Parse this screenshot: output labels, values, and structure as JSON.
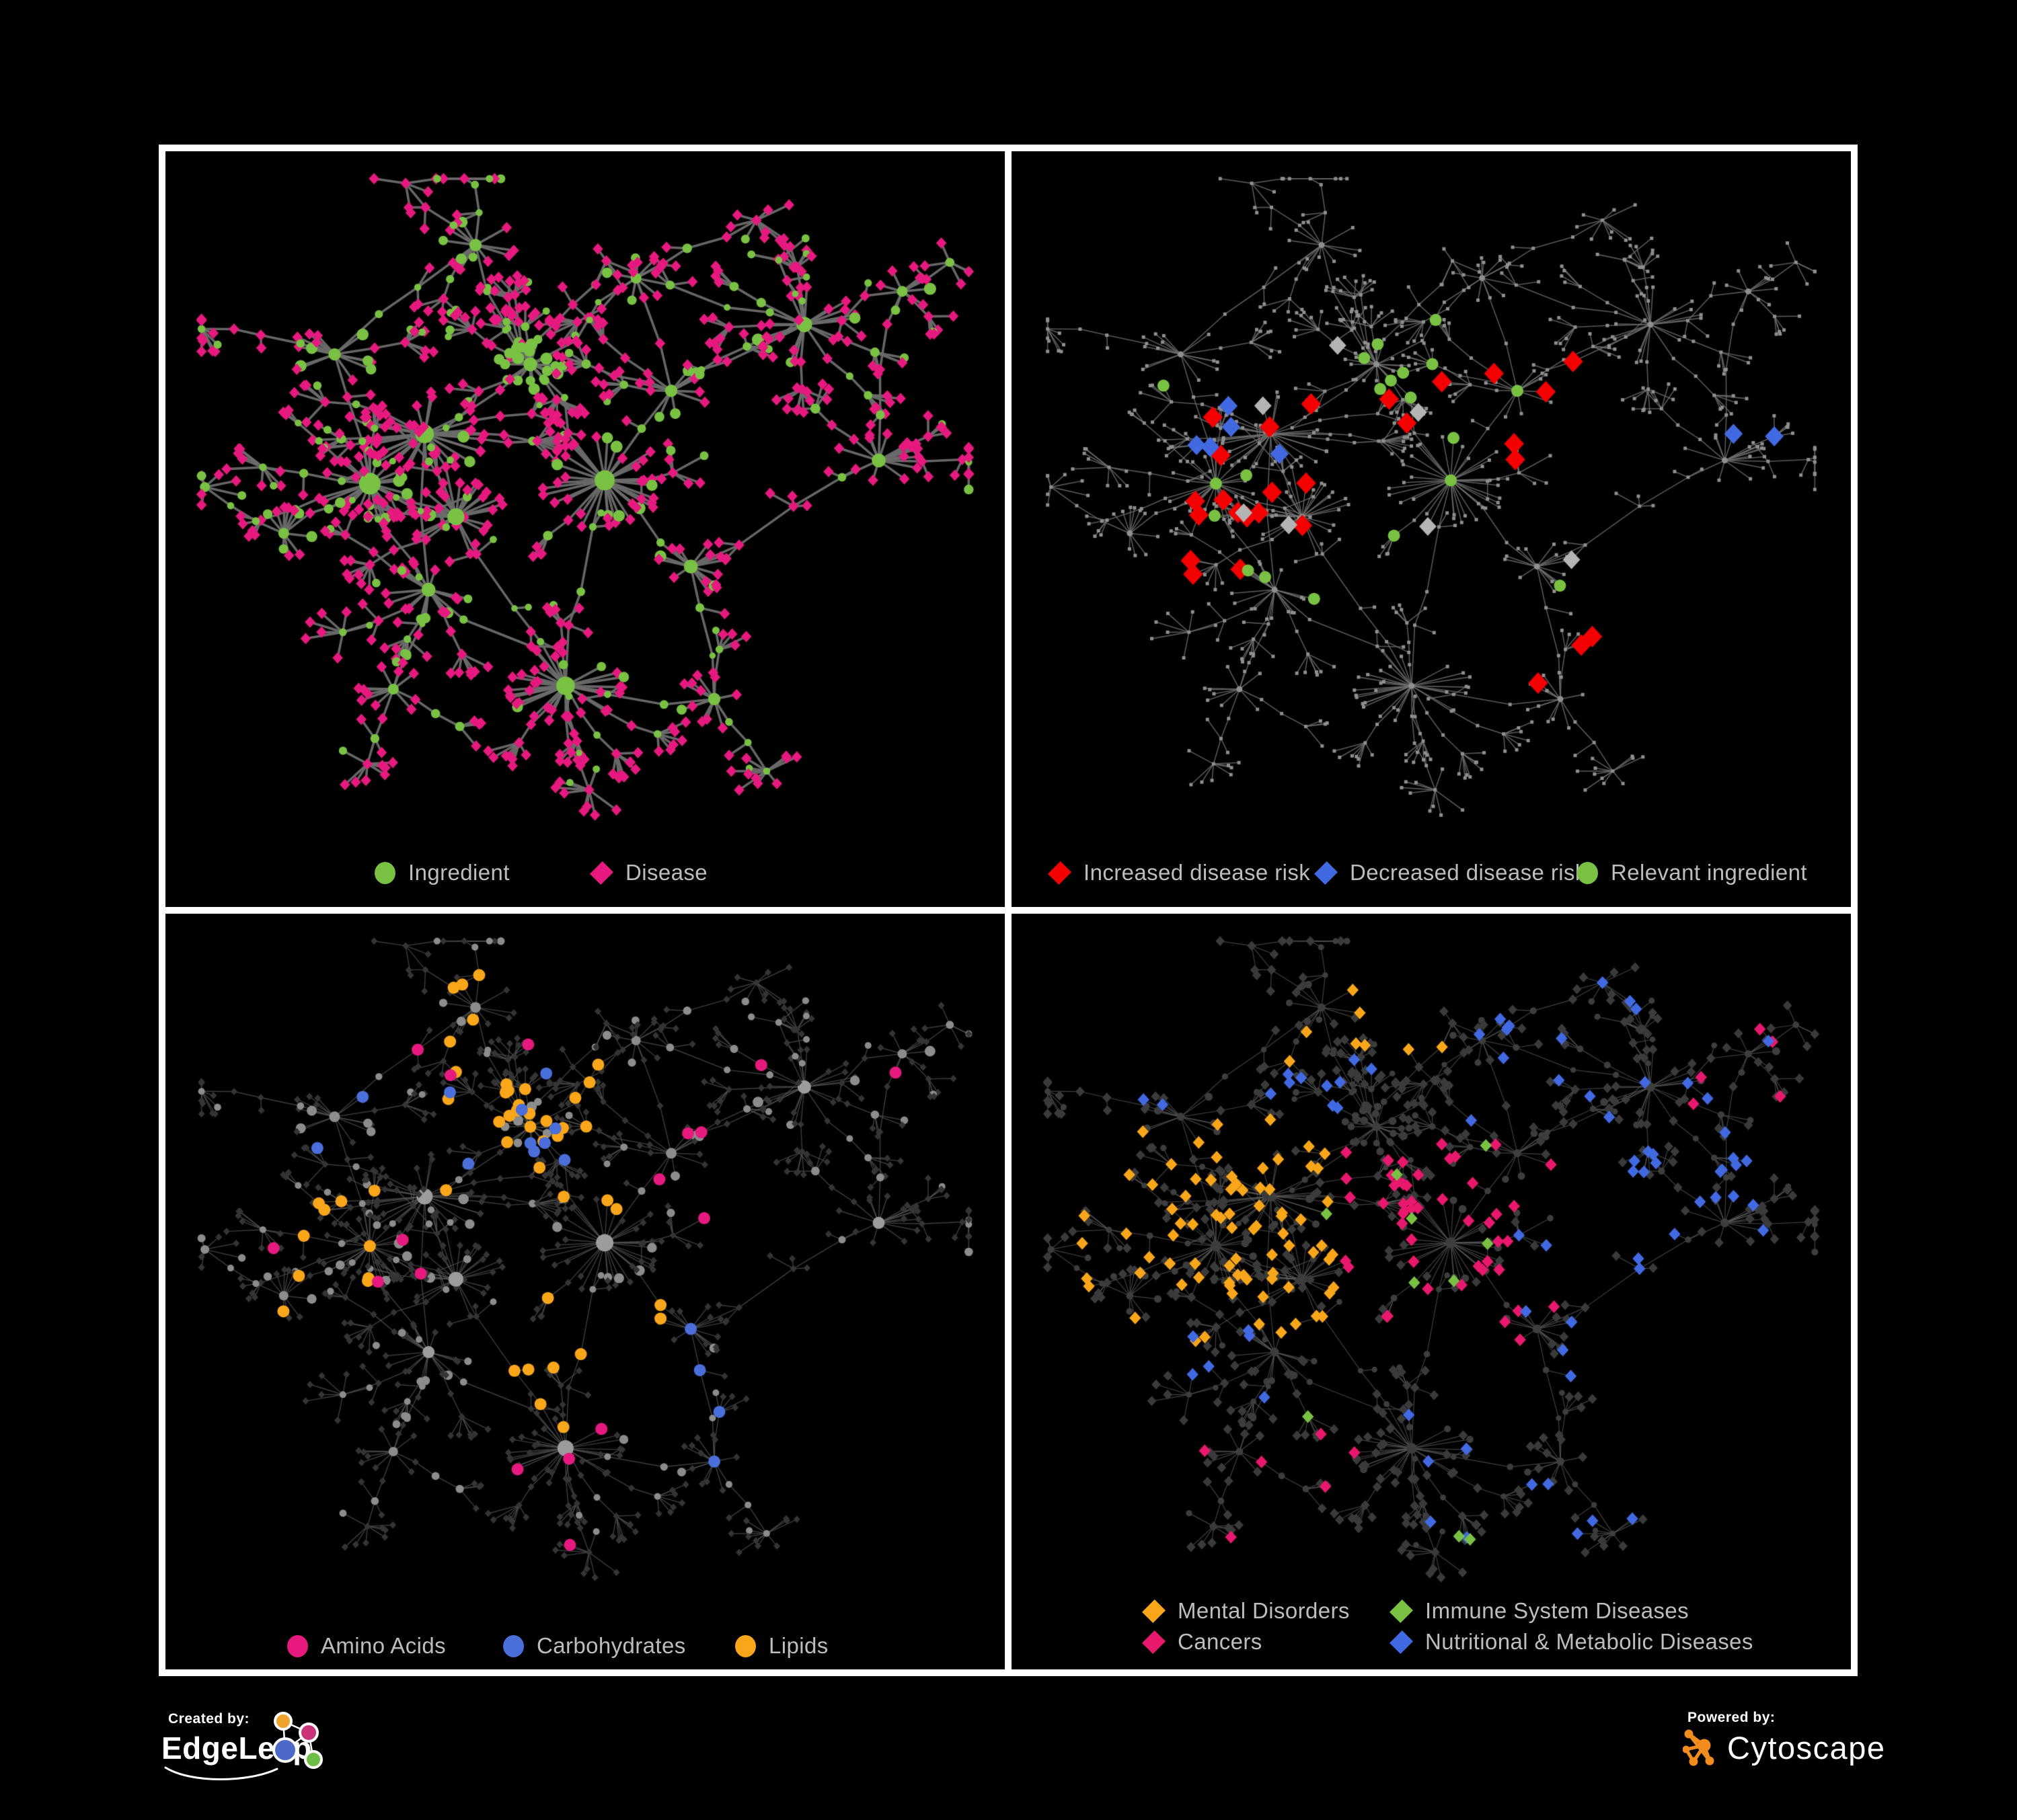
{
  "branding": {
    "created_by_label": "Created by:",
    "created_by_name": "EdgeLeap",
    "powered_by_label": "Powered by:",
    "powered_by_name": "Cytoscape",
    "edgeleap_logo_colors": [
      "#F0A32A",
      "#C9347B",
      "#4A69C8",
      "#6CBE45"
    ],
    "cytoscape_orange": "#F28C1E"
  },
  "panels": [
    {
      "key": "ingredient-disease",
      "legend": [
        {
          "label": "Ingredient",
          "shape": "circle",
          "color": "#79C143"
        },
        {
          "label": "Disease",
          "shape": "diamond",
          "color": "#E6197F"
        }
      ]
    },
    {
      "key": "disease-risk",
      "legend": [
        {
          "label": "Increased disease risk",
          "shape": "diamond",
          "color": "#F40000"
        },
        {
          "label": "Decreased disease risk",
          "shape": "diamond",
          "color": "#4169E1"
        },
        {
          "label": "Relevant ingredient",
          "shape": "circle",
          "color": "#79C143"
        }
      ]
    },
    {
      "key": "nutrient-classes",
      "legend": [
        {
          "label": "Amino Acids",
          "shape": "circle",
          "color": "#E6197F"
        },
        {
          "label": "Carbohydrates",
          "shape": "circle",
          "color": "#4A6FDB"
        },
        {
          "label": "Lipids",
          "shape": "circle",
          "color": "#F9A61A"
        }
      ]
    },
    {
      "key": "disease-classes",
      "legend": [
        {
          "label": "Mental Disorders",
          "shape": "diamond",
          "color": "#F9A61A"
        },
        {
          "label": "Immune System Diseases",
          "shape": "diamond",
          "color": "#79C143"
        },
        {
          "label": "Cancers",
          "shape": "diamond",
          "color": "#E8186D"
        },
        {
          "label": "Nutritional & Metabolic Diseases",
          "shape": "diamond",
          "color": "#4169E1"
        }
      ]
    }
  ],
  "network": {
    "seed": 5,
    "clusters": [
      [
        0.43,
        0.295,
        24,
        0.038,
        0.18,
        9
      ],
      [
        0.295,
        0.4,
        30,
        0.07,
        0.8,
        12
      ],
      [
        0.225,
        0.475,
        26,
        0.062,
        0.8,
        14
      ],
      [
        0.335,
        0.525,
        24,
        0.06,
        0.75,
        11
      ],
      [
        0.525,
        0.47,
        34,
        0.075,
        0.85,
        13
      ],
      [
        0.475,
        0.78,
        30,
        0.068,
        0.85,
        12
      ],
      [
        0.3,
        0.635,
        18,
        0.05,
        0.8,
        9
      ],
      [
        0.78,
        0.235,
        22,
        0.06,
        0.85,
        10
      ],
      [
        0.875,
        0.44,
        16,
        0.05,
        0.85,
        9
      ],
      [
        0.635,
        0.6,
        15,
        0.045,
        0.8,
        9
      ],
      [
        0.18,
        0.28,
        14,
        0.05,
        0.75,
        8
      ],
      [
        0.36,
        0.115,
        12,
        0.045,
        0.7,
        8
      ],
      [
        0.565,
        0.165,
        10,
        0.04,
        0.75,
        7
      ],
      [
        0.665,
        0.8,
        12,
        0.045,
        0.85,
        8
      ],
      [
        0.115,
        0.55,
        10,
        0.04,
        0.8,
        7
      ],
      [
        0.255,
        0.785,
        10,
        0.04,
        0.8,
        7
      ],
      [
        0.905,
        0.185,
        8,
        0.035,
        0.8,
        7
      ],
      [
        0.61,
        0.335,
        12,
        0.045,
        0.75,
        8
      ]
    ],
    "links": [
      [
        0,
        1,
        2
      ],
      [
        1,
        2,
        1
      ],
      [
        2,
        3,
        1
      ],
      [
        3,
        1,
        1
      ],
      [
        0,
        4,
        2
      ],
      [
        4,
        5,
        3
      ],
      [
        4,
        17,
        1
      ],
      [
        17,
        7,
        3
      ],
      [
        7,
        16,
        2
      ],
      [
        4,
        9,
        2
      ],
      [
        9,
        8,
        3
      ],
      [
        5,
        13,
        2
      ],
      [
        5,
        6,
        2
      ],
      [
        6,
        2,
        2
      ],
      [
        6,
        15,
        2
      ],
      [
        2,
        14,
        2
      ],
      [
        0,
        11,
        2
      ],
      [
        11,
        10,
        2
      ],
      [
        10,
        2,
        2
      ],
      [
        0,
        12,
        2
      ],
      [
        12,
        7,
        3
      ],
      [
        3,
        5,
        3
      ],
      [
        1,
        6,
        1
      ],
      [
        9,
        13,
        2
      ],
      [
        17,
        12,
        1
      ],
      [
        8,
        16,
        3
      ]
    ],
    "tendrils": [
      [
        10,
        -135,
        4
      ],
      [
        11,
        -80,
        3
      ],
      [
        11,
        -150,
        3
      ],
      [
        0,
        -95,
        5
      ],
      [
        12,
        -50,
        4
      ],
      [
        7,
        -75,
        3
      ],
      [
        16,
        -20,
        2
      ],
      [
        5,
        95,
        4
      ],
      [
        15,
        130,
        3
      ],
      [
        14,
        -175,
        3
      ],
      [
        8,
        5,
        3
      ],
      [
        13,
        55,
        3
      ],
      [
        6,
        160,
        3
      ],
      [
        2,
        -170,
        3
      ],
      [
        4,
        15,
        2
      ]
    ],
    "panel_styles": [
      {
        "mode": "typed",
        "edge": "#6C6C6C",
        "edgeWidth": 3.6,
        "edgeAlpha": 0.95,
        "ingredientColor": "#79C143",
        "diseaseColor": "#E6197F",
        "diamondR": 8.5
      },
      {
        "mode": "highlight",
        "edge": "#6F6F6F",
        "edgeWidth": 1.6,
        "edgeAlpha": 0.8,
        "baseColor": "#8F8F8F",
        "groups": [
          {
            "color": "#F40000",
            "shape": "diamond",
            "kind": "d",
            "r": 16,
            "regions": [
              [
                24,
                0.18,
                0.7,
                0.25,
                0.62
              ],
              [
                3,
                0.58,
                0.82,
                0.66,
                0.85
              ]
            ]
          },
          {
            "color": "#4169E1",
            "shape": "diamond",
            "kind": "d",
            "r": 15,
            "regions": [
              [
                5,
                0.14,
                0.42,
                0.3,
                0.55
              ],
              [
                2,
                0.75,
                0.95,
                0.2,
                0.45
              ]
            ]
          },
          {
            "color": "#B4B4B4",
            "shape": "diamond",
            "kind": "d",
            "r": 14,
            "regions": [
              [
                7,
                0.2,
                0.72,
                0.25,
                0.6
              ]
            ]
          },
          {
            "color": "#79C143",
            "shape": "circle",
            "kind": "i",
            "r": 9,
            "regions": [
              [
                20,
                0.12,
                0.78,
                0.18,
                0.68
              ]
            ]
          }
        ]
      },
      {
        "mode": "nutrient",
        "edge": "#585858",
        "edgeWidth": 1.4,
        "edgeAlpha": 0.7,
        "ingredientBase": "#8C8C8C",
        "diseaseBase": "#343434",
        "groups": [
          {
            "color": "#F9A61A",
            "shape": "circle",
            "kind": "i",
            "r": 9,
            "regions": [
              [
                26,
                0.32,
                0.56,
                0.2,
                0.42
              ],
              [
                9,
                0.4,
                0.62,
                0.55,
                0.75
              ],
              [
                10,
                0.1,
                0.35,
                0.3,
                0.6
              ],
              [
                5,
                0.2,
                0.5,
                0.05,
                0.2
              ]
            ]
          },
          {
            "color": "#4A6FDB",
            "shape": "circle",
            "kind": "i",
            "r": 9,
            "regions": [
              [
                9,
                0.3,
                0.52,
                0.2,
                0.4
              ],
              [
                4,
                0.55,
                0.8,
                0.58,
                0.8
              ],
              [
                2,
                0.05,
                0.25,
                0.12,
                0.35
              ]
            ]
          },
          {
            "color": "#E6197F",
            "shape": "circle",
            "kind": "i",
            "r": 9,
            "regions": [
              [
                4,
                0.05,
                0.3,
                0.35,
                0.62
              ],
              [
                4,
                0.33,
                0.6,
                0.72,
                0.95
              ],
              [
                3,
                0.52,
                0.75,
                0.28,
                0.5
              ],
              [
                3,
                0.18,
                0.45,
                0.04,
                0.25
              ],
              [
                3,
                0.6,
                0.92,
                0.1,
                0.32
              ]
            ]
          }
        ]
      },
      {
        "mode": "disease-class",
        "edge": "#646464",
        "edgeWidth": 1.2,
        "edgeAlpha": 0.65,
        "ingredientBase": "#3D3D3D",
        "diseaseBase": "#3A3A3A",
        "groups": [
          {
            "color": "#F9A61A",
            "shape": "diamond",
            "kind": "d",
            "r": 9.5,
            "regions": [
              [
                78,
                0.04,
                0.38,
                0.28,
                0.62
              ],
              [
                8,
                0.28,
                0.52,
                0.04,
                0.2
              ]
            ]
          },
          {
            "color": "#E8186D",
            "shape": "diamond",
            "kind": "d",
            "r": 9.5,
            "regions": [
              [
                48,
                0.38,
                0.68,
                0.32,
                0.62
              ],
              [
                6,
                0.18,
                0.42,
                0.72,
                0.95
              ],
              [
                5,
                0.8,
                0.95,
                0.1,
                0.3
              ]
            ]
          },
          {
            "color": "#4169E1",
            "shape": "diamond",
            "kind": "d",
            "r": 9.5,
            "regions": [
              [
                26,
                0.6,
                0.95,
                0.3,
                0.68
              ],
              [
                18,
                0.55,
                0.95,
                0.02,
                0.3
              ],
              [
                12,
                0.04,
                0.45,
                0.02,
                0.3
              ],
              [
                10,
                0.45,
                0.8,
                0.7,
                0.95
              ],
              [
                6,
                0.04,
                0.3,
                0.6,
                0.8
              ]
            ]
          },
          {
            "color": "#79C143",
            "shape": "diamond",
            "kind": "d",
            "r": 9.5,
            "regions": [
              [
                7,
                0.35,
                0.62,
                0.28,
                0.6
              ],
              [
                3,
                0.3,
                0.6,
                0.72,
                0.95
              ]
            ]
          }
        ]
      }
    ]
  }
}
